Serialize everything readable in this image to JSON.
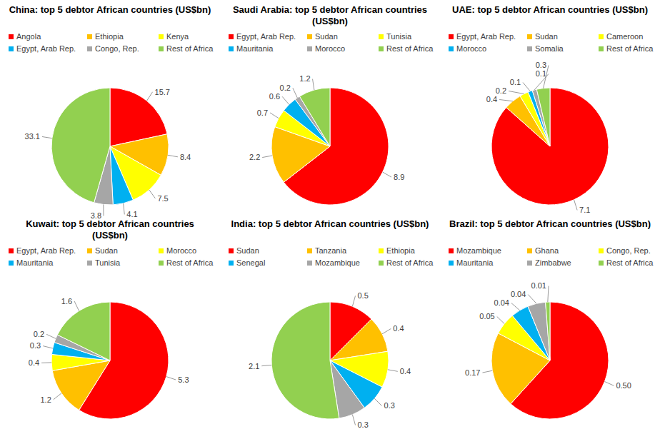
{
  "chart_data": [
    {
      "type": "pie",
      "title": "China: top 5 debtor African countries (US$bn)",
      "categories": [
        "Angola",
        "Ethiopia",
        "Kenya",
        "Egypt, Arab Rep.",
        "Congo, Rep.",
        "Rest of Africa"
      ],
      "values": [
        15.7,
        8.4,
        7.5,
        4.1,
        3.8,
        33.1
      ],
      "colors": [
        "#ff0000",
        "#ffc000",
        "#ffff00",
        "#00b0f0",
        "#a6a6a6",
        "#92d050"
      ],
      "data_labels": true,
      "legend": "top"
    },
    {
      "type": "pie",
      "title": "Saudi Arabia: top 5 debtor African countries (US$bn)",
      "categories": [
        "Egypt, Arab Rep.",
        "Sudan",
        "Tunisia",
        "Mauritania",
        "Morocco",
        "Rest of Africa"
      ],
      "values": [
        8.9,
        2.2,
        0.7,
        0.6,
        0.2,
        1.2
      ],
      "colors": [
        "#ff0000",
        "#ffc000",
        "#ffff00",
        "#00b0f0",
        "#a6a6a6",
        "#92d050"
      ],
      "data_labels": true,
      "legend": "top"
    },
    {
      "type": "pie",
      "title": "UAE: top 5 debtor African countries (US$bn)",
      "categories": [
        "Egypt, Arab Rep.",
        "Sudan",
        "Cameroon",
        "Morocco",
        "Somalia",
        "Rest of Africa"
      ],
      "values": [
        7.1,
        0.4,
        0.2,
        0.1,
        0.1,
        0.3
      ],
      "colors": [
        "#ff0000",
        "#ffc000",
        "#ffff00",
        "#00b0f0",
        "#a6a6a6",
        "#92d050"
      ],
      "data_labels": true,
      "legend": "top"
    },
    {
      "type": "pie",
      "title": "Kuwait: top 5 debtor African countries (US$bn)",
      "categories": [
        "Egypt, Arab Rep.",
        "Sudan",
        "Morocco",
        "Mauritania",
        "Tunisia",
        "Rest of Africa"
      ],
      "values": [
        5.3,
        1.2,
        0.4,
        0.3,
        0.2,
        1.6
      ],
      "colors": [
        "#ff0000",
        "#ffc000",
        "#ffff00",
        "#00b0f0",
        "#a6a6a6",
        "#92d050"
      ],
      "data_labels": true,
      "legend": "top"
    },
    {
      "type": "pie",
      "title": "India: top 5 debtor African countries (US$bn)",
      "categories": [
        "Sudan",
        "Tanzania",
        "Ethiopia",
        "Senegal",
        "Mozambique",
        "Rest of Africa"
      ],
      "values": [
        0.5,
        0.4,
        0.4,
        0.3,
        0.3,
        2.1
      ],
      "colors": [
        "#ff0000",
        "#ffc000",
        "#ffff00",
        "#00b0f0",
        "#a6a6a6",
        "#92d050"
      ],
      "data_labels": true,
      "legend": "top"
    },
    {
      "type": "pie",
      "title": "Brazil: top 5 debtor African countries (US$bn)",
      "categories": [
        "Mozambique",
        "Ghana",
        "Congo, Rep.",
        "Mauritania",
        "Zimbabwe",
        "Rest of Africa"
      ],
      "values": [
        0.5,
        0.17,
        0.05,
        0.04,
        0.04,
        0.01
      ],
      "value_labels": [
        "0.50",
        "0.17",
        "0.05",
        "0.04",
        "0.04",
        "0.01"
      ],
      "colors": [
        "#ff0000",
        "#ffc000",
        "#ffff00",
        "#00b0f0",
        "#a6a6a6",
        "#92d050"
      ],
      "data_labels": true,
      "legend": "top"
    }
  ]
}
